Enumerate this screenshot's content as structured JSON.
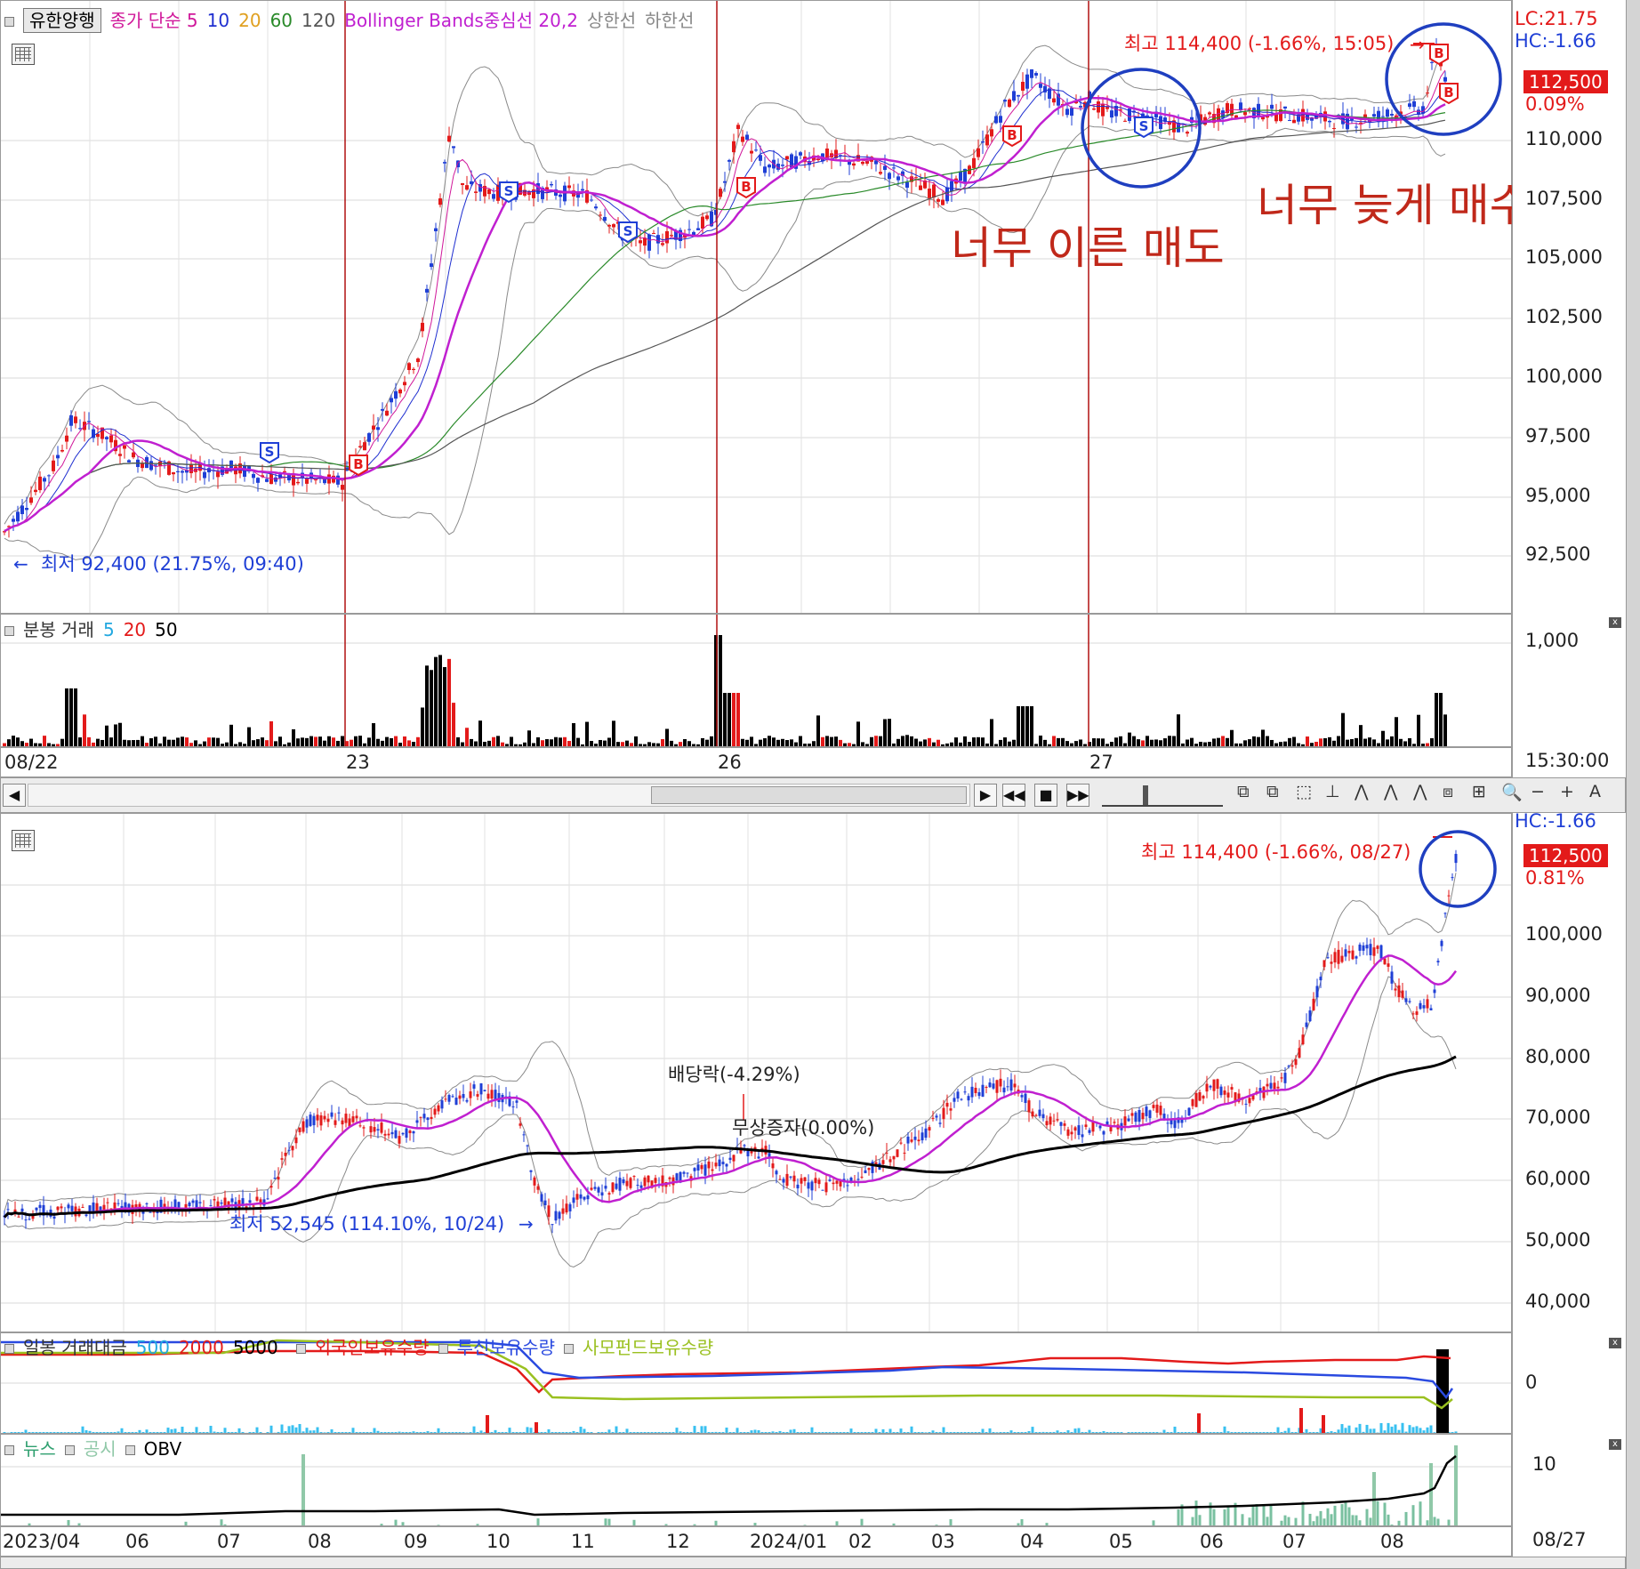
{
  "top_chart": {
    "stock_name": "유한양행",
    "indicators": [
      {
        "label": "종가 단순 5",
        "color": "#d0189a"
      },
      {
        "label": "10",
        "color": "#1f2fd0"
      },
      {
        "label": "20",
        "color": "#e0a020"
      },
      {
        "label": "60",
        "color": "#2a8a2a"
      },
      {
        "label": "120",
        "color": "#555555"
      },
      {
        "label": "Bollinger Bands중심선 20,2",
        "color": "#c020d0"
      },
      {
        "label": "상한선",
        "color": "#888888"
      },
      {
        "label": "하한선",
        "color": "#888888"
      }
    ],
    "lc_label": "LC:21.75",
    "hc_label": "HC:-1.66",
    "current_price": "112,500",
    "change_pct": "0.09%",
    "high_label": "최고 114,400 (-1.66%, 15:05)",
    "low_label": "최저 92,400 (21.75%, 09:40)",
    "annotation_sell": "너무 이른 매도",
    "annotation_buy": "너무 늦게 매수",
    "y_ticks": [
      "110,000",
      "107,500",
      "105,000",
      "102,500",
      "100,000",
      "97,500",
      "95,000",
      "92,500"
    ],
    "x_ticks": [
      "08/22",
      "23",
      "26",
      "27"
    ],
    "time_label": "15:30:00",
    "signals": [
      "B",
      "S",
      "S",
      "S",
      "B",
      "B",
      "S",
      "B",
      "B"
    ]
  },
  "top_volume": {
    "title": "분봉 거래",
    "ma": [
      {
        "label": "5",
        "color": "#22a8e0"
      },
      {
        "label": "20",
        "color": "#e31a1a"
      },
      {
        "label": "50",
        "color": "#000000"
      }
    ],
    "y_tick": "1,000"
  },
  "bottom_chart": {
    "hc_label": "HC:-1.66",
    "current_price": "112,500",
    "change_pct": "0.81%",
    "high_label": "최고 114,400 (-1.66%, 08/27)",
    "low_label": "최저 52,545 (114.10%, 10/24)",
    "dividend_label": "배당락(-4.29%)",
    "bonus_label": "무상증자(0.00%)",
    "y_ticks": [
      "100,000",
      "90,000",
      "80,000",
      "70,000",
      "60,000",
      "50,000",
      "40,000"
    ]
  },
  "bottom_amount": {
    "title": "일봉 거래대금",
    "ma": [
      {
        "label": "500",
        "color": "#22a8e0"
      },
      {
        "label": "2000",
        "color": "#e31a1a"
      },
      {
        "label": "5000",
        "color": "#000000"
      }
    ],
    "holdings": [
      {
        "label": "외국인보유수량",
        "color": "#e31a1a"
      },
      {
        "label": "투신보유수량",
        "color": "#2a4ae0"
      },
      {
        "label": "사모펀드보유수량",
        "color": "#9ac020"
      }
    ],
    "y_tick": "0"
  },
  "bottom_news": {
    "items": [
      {
        "label": "뉴스",
        "color": "#30a070"
      },
      {
        "label": "공시",
        "color": "#90c8a8"
      },
      {
        "label": "OBV",
        "color": "#000000"
      }
    ],
    "y_tick": "10"
  },
  "bottom_x_ticks": [
    "2023/04",
    "06",
    "07",
    "08",
    "09",
    "10",
    "11",
    "12",
    "2024/01",
    "02",
    "03",
    "04",
    "05",
    "06",
    "07",
    "08"
  ],
  "bottom_date_label": "08/27",
  "colors": {
    "up": "#e31a1a",
    "down": "#1f3fd6",
    "annotation": "#c0281a",
    "circle": "#1f3fc0"
  }
}
